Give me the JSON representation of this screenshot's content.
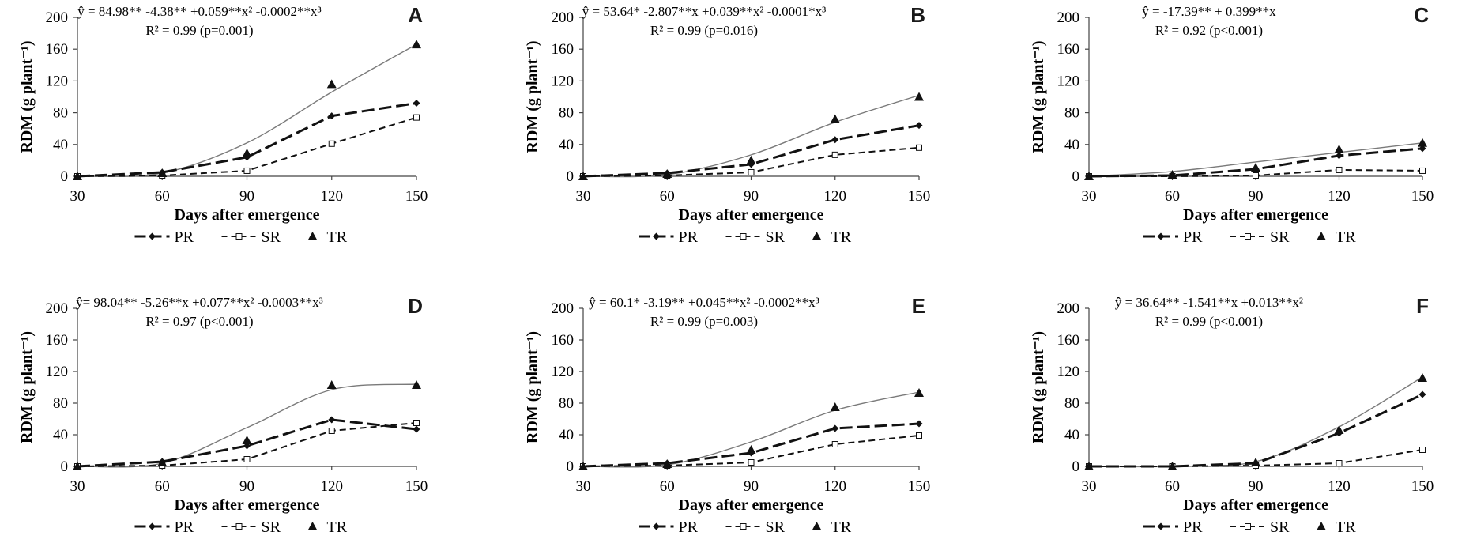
{
  "chart_data": [
    {
      "type": "line",
      "panel_label": "A",
      "equation": "ŷ = 84.98** -4.38** +0.059**x² -0.0002**x³",
      "r2_text": "R² = 0.99 (p=0.001)",
      "xlabel": "Days after emergence",
      "ylabel": "RDM  (g plant⁻¹)",
      "x": [
        30,
        60,
        90,
        120,
        150
      ],
      "ylim": [
        0,
        200
      ],
      "yticks": [
        0,
        40,
        80,
        120,
        160,
        200
      ],
      "series": [
        {
          "name": "PR",
          "values": [
            0,
            5,
            24,
            76,
            92
          ]
        },
        {
          "name": "SR",
          "values": [
            0,
            1,
            7,
            41,
            74
          ]
        },
        {
          "name": "TR",
          "values": [
            0,
            4,
            29,
            116,
            166
          ]
        }
      ],
      "fit": [
        0,
        4,
        42,
        106,
        166
      ]
    },
    {
      "type": "line",
      "panel_label": "B",
      "equation": "ŷ = 53.64* -2.807**x +0.039**x² -0.0001*x³",
      "r2_text": "R² = 0.99 (p=0.016)",
      "xlabel": "Days after emergence",
      "ylabel": "RDM  (g plant⁻¹)",
      "x": [
        30,
        60,
        90,
        120,
        150
      ],
      "ylim": [
        0,
        200
      ],
      "yticks": [
        0,
        40,
        80,
        120,
        160,
        200
      ],
      "series": [
        {
          "name": "PR",
          "values": [
            0,
            4,
            15,
            46,
            64
          ]
        },
        {
          "name": "SR",
          "values": [
            0,
            1,
            5,
            27,
            36
          ]
        },
        {
          "name": "TR",
          "values": [
            0,
            3,
            20,
            72,
            100
          ]
        }
      ],
      "fit": [
        0,
        2,
        27,
        68,
        102
      ]
    },
    {
      "type": "line",
      "panel_label": "C",
      "equation": "ŷ = -17.39** + 0.399**x",
      "r2_text": "R² = 0.92 (p<0.001)",
      "xlabel": "Days after emergence",
      "ylabel": "RDM  (g plant⁻¹)",
      "x": [
        30,
        60,
        90,
        120,
        150
      ],
      "ylim": [
        0,
        200
      ],
      "yticks": [
        0,
        40,
        80,
        120,
        160,
        200
      ],
      "series": [
        {
          "name": "PR",
          "values": [
            0,
            1,
            9,
            26,
            35
          ]
        },
        {
          "name": "SR",
          "values": [
            0,
            0,
            1,
            8,
            7
          ]
        },
        {
          "name": "TR",
          "values": [
            0,
            2,
            11,
            34,
            42
          ]
        }
      ],
      "fit": [
        0,
        6,
        18,
        30,
        42
      ]
    },
    {
      "type": "line",
      "panel_label": "D",
      "equation": "ŷ= 98.04** -5.26**x +0.077**x² -0.0003**x³",
      "r2_text": "R² = 0.97 (p<0.001)",
      "xlabel": "Days after emergence",
      "ylabel": "RDM  (g plant⁻¹)",
      "x": [
        30,
        60,
        90,
        120,
        150
      ],
      "ylim": [
        0,
        200
      ],
      "yticks": [
        0,
        40,
        80,
        120,
        160,
        200
      ],
      "series": [
        {
          "name": "PR",
          "values": [
            0,
            6,
            26,
            59,
            47
          ]
        },
        {
          "name": "SR",
          "values": [
            0,
            1,
            9,
            45,
            55
          ]
        },
        {
          "name": "TR",
          "values": [
            0,
            5,
            33,
            103,
            103
          ]
        }
      ],
      "fit": [
        0,
        4,
        49,
        97,
        104
      ]
    },
    {
      "type": "line",
      "panel_label": "E",
      "equation": "ŷ = 60.1* -3.19** +0.045**x² -0.0002**x³",
      "r2_text": "R² = 0.99 (p=0.003)",
      "xlabel": "Days after emergence",
      "ylabel": "RDM  (g plant⁻¹)",
      "x": [
        30,
        60,
        90,
        120,
        150
      ],
      "ylim": [
        0,
        200
      ],
      "yticks": [
        0,
        40,
        80,
        120,
        160,
        200
      ],
      "series": [
        {
          "name": "PR",
          "values": [
            0,
            4,
            17,
            48,
            54
          ]
        },
        {
          "name": "SR",
          "values": [
            0,
            1,
            5,
            28,
            39
          ]
        },
        {
          "name": "TR",
          "values": [
            0,
            3,
            21,
            75,
            93
          ]
        }
      ],
      "fit": [
        0,
        2,
        31,
        71,
        94
      ]
    },
    {
      "type": "line",
      "panel_label": "F",
      "equation": "ŷ = 36.64** -1.541**x +0.013**x²",
      "r2_text": "R² = 0.99 (p<0.001)",
      "xlabel": "Days after emergence",
      "ylabel": "RDM  (g plant⁻¹)",
      "x": [
        30,
        60,
        90,
        120,
        150
      ],
      "ylim": [
        0,
        200
      ],
      "yticks": [
        0,
        40,
        80,
        120,
        160,
        200
      ],
      "series": [
        {
          "name": "PR",
          "values": [
            0,
            0,
            4,
            42,
            91
          ]
        },
        {
          "name": "SR",
          "values": [
            0,
            0,
            1,
            4,
            21
          ]
        },
        {
          "name": "TR",
          "values": [
            0,
            0,
            5,
            46,
            112
          ]
        }
      ],
      "fit": [
        0,
        0,
        6,
        50,
        113
      ]
    }
  ],
  "legend": [
    "PR",
    "SR",
    "TR"
  ]
}
